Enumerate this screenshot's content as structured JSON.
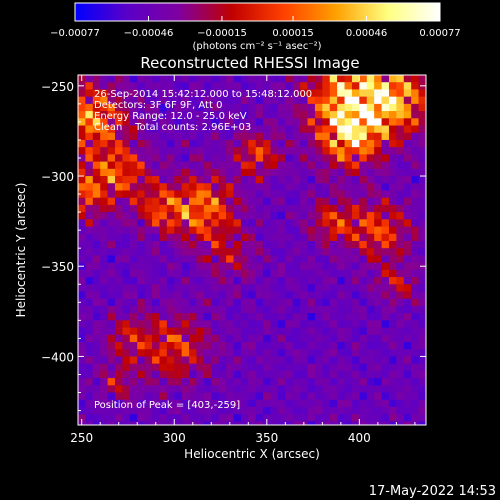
{
  "chart_data": {
    "type": "heatmap",
    "title": "Reconstructed RHESSI Image",
    "xlabel": "Heliocentric X (arcsec)",
    "ylabel": "Heliocentric Y (arcsec)",
    "xlim": [
      248,
      436
    ],
    "ylim": [
      -438,
      -244
    ],
    "x_ticks": [
      250,
      300,
      350,
      400
    ],
    "x_tick_labels": [
      "250",
      "300",
      "350",
      "400"
    ],
    "y_ticks": [
      -250,
      -300,
      -350,
      -400
    ],
    "y_tick_labels": [
      "−250",
      "−300",
      "−350",
      "−400"
    ],
    "colorbar": {
      "range": [
        -0.00077,
        0.00077
      ],
      "tick_values": [
        -0.00077,
        -0.00046,
        -0.00015,
        0.00015,
        0.00046,
        0.00077
      ],
      "tick_labels": [
        "−0.00077",
        "−0.00046",
        "−0.00015",
        "0.00015",
        "0.00046",
        "0.00077"
      ],
      "units": "(photons cm⁻² s⁻¹ asec⁻²)",
      "colors": [
        "#0000ff",
        "#5a00c8",
        "#8000a0",
        "#c00000",
        "#ff4000",
        "#ffa000",
        "#ffff80",
        "#ffffff"
      ]
    },
    "annotations": [
      "26-Sep-2014 15:42:12.000 to 15:48:12.000",
      "Detectors: 3F 6F 9F, Att 0",
      "Energy Range: 12.0 - 25.0 keV",
      "Clean    Total counts: 2.96E+03"
    ],
    "peak_label": "Position of Peak = [403,-259]",
    "peak_position": [
      403,
      -259
    ],
    "grid": false
  },
  "footer": {
    "timestamp": "17-May-2022 14:53"
  }
}
